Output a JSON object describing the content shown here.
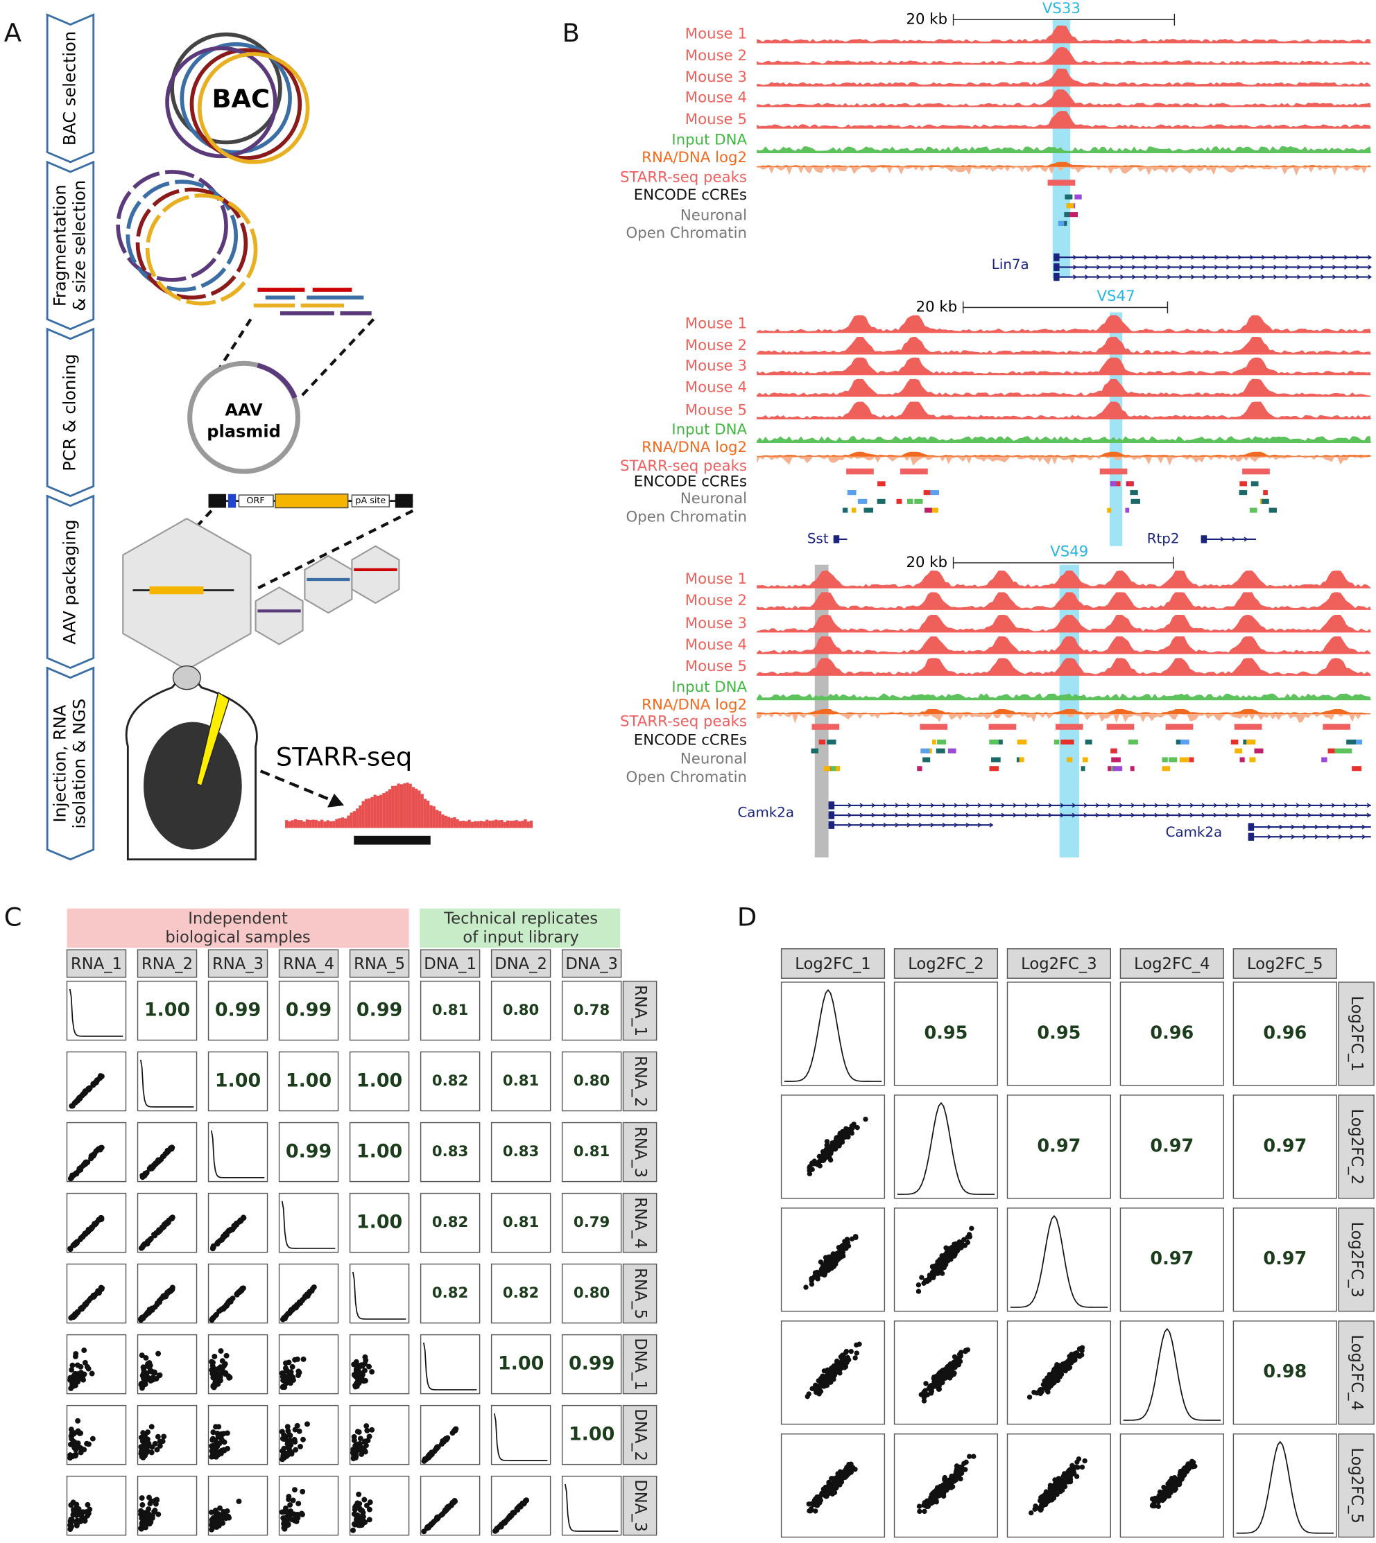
{
  "panel_labels": [
    "A",
    "B",
    "C",
    "D"
  ],
  "panel_a": {
    "steps": [
      [
        "BAC selection"
      ],
      [
        "Fragmentation",
        "& size selection"
      ],
      [
        "PCR & cloning"
      ],
      [
        "AAV packaging"
      ],
      [
        "Injection, RNA",
        "isolation & NGS"
      ]
    ],
    "bac_label": "BAC",
    "plasmid_label": [
      "AAV",
      "plasmid"
    ],
    "orf": "ORF",
    "pa_site": "pA site",
    "readout": "STARR-seq"
  },
  "panel_b": {
    "scale_label": "20 kb",
    "track_labels": [
      "Mouse 1",
      "Mouse 2",
      "Mouse 3",
      "Mouse 4",
      "Mouse 5",
      "Input DNA",
      "RNA/DNA log2",
      "STARR-seq peaks",
      "ENCODE cCREs",
      "Neuronal",
      "Open Chromatin"
    ],
    "regions": [
      {
        "name": "VS33",
        "genes": [
          "Lin7a"
        ]
      },
      {
        "name": "VS47",
        "genes": [
          "Sst",
          "Rtp2"
        ]
      },
      {
        "name": "VS49",
        "genes": [
          "Camk2a",
          "Camk2a"
        ]
      }
    ]
  },
  "panel_c": {
    "group_labels": [
      [
        "Independent",
        "biological samples"
      ],
      [
        "Technical replicates",
        "of input library"
      ]
    ],
    "names": [
      "RNA_1",
      "RNA_2",
      "RNA_3",
      "RNA_4",
      "RNA_5",
      "DNA_1",
      "DNA_2",
      "DNA_3"
    ],
    "upper": [
      [
        "1.00",
        "0.99",
        "0.99",
        "0.99",
        "0.81",
        "0.80",
        "0.78"
      ],
      [
        "1.00",
        "1.00",
        "1.00",
        "0.82",
        "0.81",
        "0.80"
      ],
      [
        "0.99",
        "1.00",
        "0.83",
        "0.83",
        "0.81"
      ],
      [
        "1.00",
        "0.82",
        "0.81",
        "0.79"
      ],
      [
        "0.82",
        "0.82",
        "0.80"
      ],
      [
        "1.00",
        "0.99"
      ],
      [
        "1.00"
      ]
    ]
  },
  "panel_d": {
    "names": [
      "Log2FC_1",
      "Log2FC_2",
      "Log2FC_3",
      "Log2FC_4",
      "Log2FC_5"
    ],
    "upper": [
      [
        "0.95",
        "0.95",
        "0.96",
        "0.96"
      ],
      [
        "0.97",
        "0.97",
        "0.97"
      ],
      [
        "0.97",
        "0.97"
      ],
      [
        "0.98"
      ]
    ]
  }
}
